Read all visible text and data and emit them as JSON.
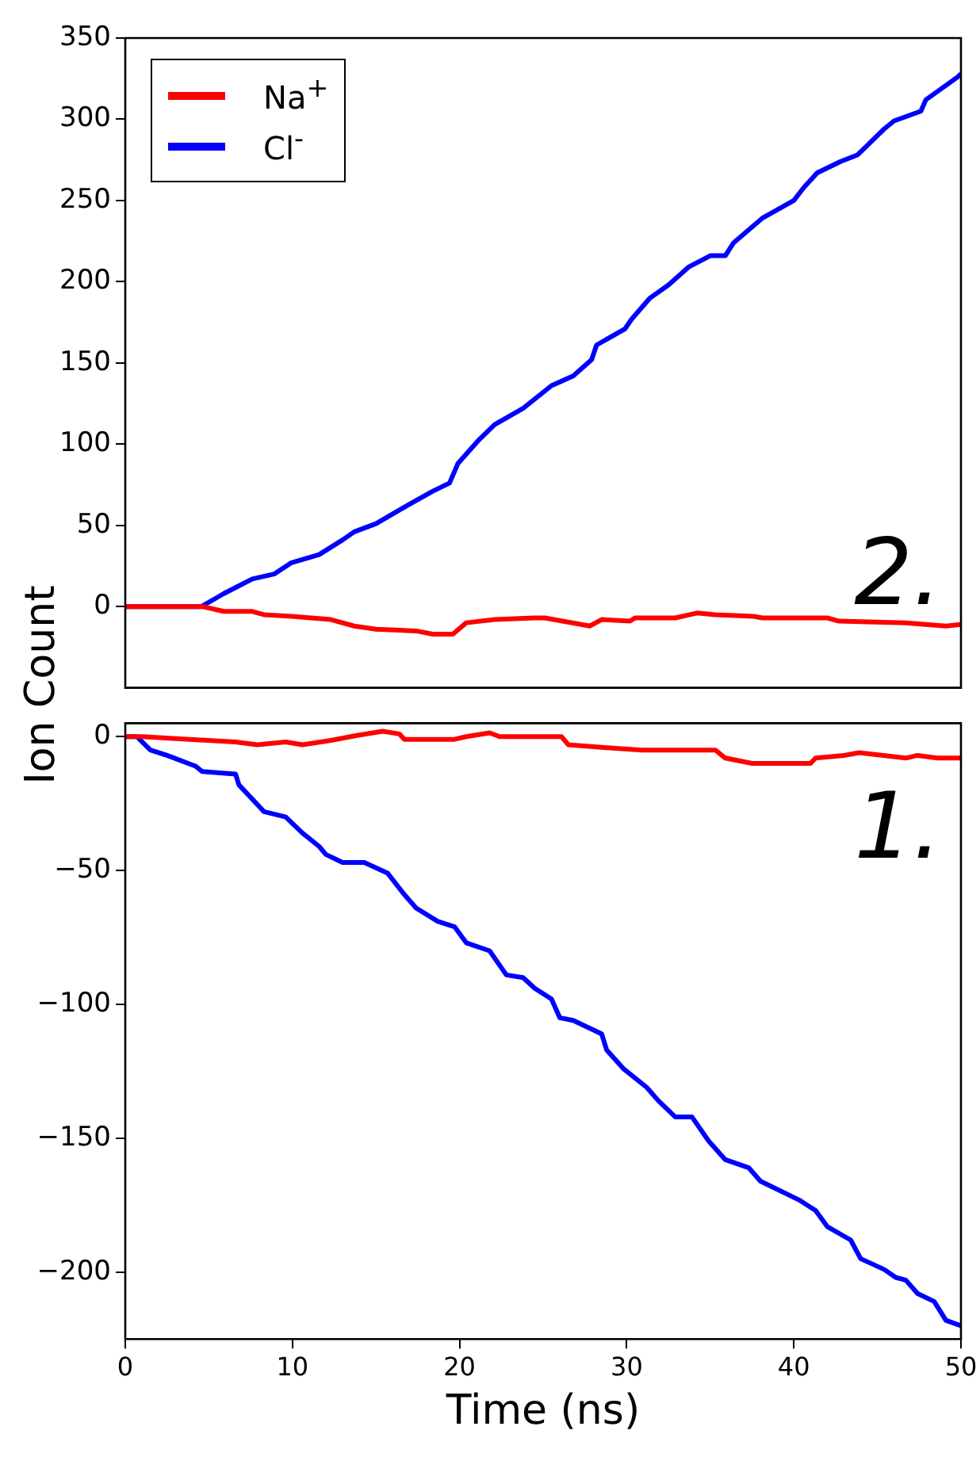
{
  "chart_data": [
    {
      "type": "line",
      "ylabel": "Ion Count",
      "legend": "top left",
      "grid": false,
      "tick_labels": "y",
      "annotations": [
        "2."
      ],
      "xlim": [
        0,
        50
      ],
      "xticks": [
        0,
        10,
        20,
        30,
        40,
        50
      ],
      "ylim": [
        -50,
        350
      ],
      "yticks": [
        0,
        50,
        100,
        150,
        200,
        250,
        300,
        350
      ],
      "series": [
        {
          "name": "Na$^{+}$",
          "color": "#ff0000",
          "x": [
            0,
            4.6,
            5.9,
            7.6,
            8.3,
            9.95,
            12.3,
            13.7,
            15,
            17.4,
            18.4,
            19.6,
            20.4,
            22.1,
            24.5,
            25.1,
            27.8,
            28.5,
            30.2,
            30.5,
            32.9,
            34.2,
            35.3,
            37.6,
            38.1,
            42,
            42.7,
            46.7,
            49.1,
            50
          ],
          "values": [
            0,
            0,
            -3,
            -3,
            -5,
            -6,
            -8,
            -12,
            -14,
            -15,
            -17,
            -17,
            -10,
            -8,
            -7,
            -7,
            -12,
            -8,
            -9,
            -7,
            -7,
            -4,
            -5,
            -6,
            -7,
            -7,
            -9,
            -10,
            -12,
            -11
          ]
        },
        {
          "name": "Cl$^{-}$",
          "color": "#0000ff",
          "x": [
            0,
            4.55,
            5.9,
            7.6,
            8.9,
            9.95,
            11.6,
            13,
            13.7,
            15,
            17,
            18.4,
            19.4,
            19.9,
            21.1,
            22.1,
            23.8,
            25.5,
            26.8,
            27.9,
            28.2,
            29.9,
            30.3,
            31.4,
            32.5,
            33.7,
            35,
            35.9,
            36.4,
            38.1,
            40,
            40.6,
            41.4,
            42.8,
            43.8,
            44.3,
            45.4,
            46,
            47.6,
            47.9,
            49.8,
            50
          ],
          "values": [
            0,
            0,
            8,
            17,
            20,
            27,
            32,
            41,
            46,
            51,
            63,
            71,
            76,
            88,
            102,
            112,
            122,
            136,
            142,
            152,
            161,
            171,
            177,
            190,
            198,
            209,
            216,
            216,
            224,
            239,
            250,
            258,
            267,
            274,
            278,
            283,
            294,
            299,
            305,
            312,
            326,
            328
          ]
        }
      ]
    },
    {
      "type": "line",
      "xlabel": "Time (ns)",
      "grid": false,
      "annotations": [
        "1."
      ],
      "xlim": [
        0,
        50
      ],
      "xticks": [
        0,
        10,
        20,
        30,
        40,
        50
      ],
      "ylim": [
        -225,
        5
      ],
      "yticks": [
        0,
        {
          "value": -50,
          "label": "−50"
        },
        {
          "value": -100,
          "label": "−100"
        },
        {
          "value": -150,
          "label": "−150"
        },
        {
          "value": -200,
          "label": "−200"
        }
      ],
      "series": [
        {
          "color": "#ff0000",
          "x": [
            0,
            1,
            6.6,
            7.9,
            9.6,
            10.6,
            12.3,
            14,
            15.4,
            16.4,
            16.7,
            19.7,
            20.4,
            21.8,
            22.4,
            26.1,
            26.5,
            28.5,
            30.9,
            35.3,
            35.9,
            37.5,
            41,
            41.3,
            43,
            43.9,
            46.7,
            47.4,
            48.6,
            50
          ],
          "values": [
            0,
            0,
            -2,
            -3,
            -2,
            -3,
            -1.4,
            0.6,
            2,
            1,
            -1,
            -1,
            0,
            1.4,
            0,
            0,
            -3,
            -4,
            -5,
            -5,
            -8,
            -10,
            -10,
            -8,
            -7,
            -6,
            -8,
            -7,
            -8,
            -8
          ]
        },
        {
          "color": "#0000ff",
          "x": [
            0,
            0.7,
            1.5,
            2.5,
            4.2,
            4.6,
            6.6,
            6.8,
            8.3,
            9.6,
            10.6,
            11.6,
            12,
            13,
            14.3,
            15.7,
            16.7,
            17.4,
            18.7,
            19.7,
            20.4,
            21.8,
            22.8,
            23.8,
            24.5,
            25.5,
            26,
            26.8,
            28.5,
            28.8,
            29.8,
            31.2,
            31.9,
            32.9,
            33.9,
            34.9,
            35.9,
            37.3,
            38,
            40.3,
            41.3,
            42,
            43.4,
            44,
            45.4,
            46.1,
            46.7,
            47.4,
            48.4,
            49.1,
            50
          ],
          "values": [
            0,
            0,
            -5,
            -7,
            -11,
            -13,
            -14,
            -18,
            -28,
            -30,
            -36,
            -41,
            -44,
            -47,
            -47,
            -51,
            -59,
            -64,
            -69,
            -71,
            -77,
            -80,
            -89,
            -90,
            -94,
            -98,
            -105,
            -106,
            -111,
            -117,
            -124,
            -131,
            -136,
            -142,
            -142,
            -151,
            -158,
            -161,
            -166,
            -173,
            -177,
            -183,
            -188,
            -195,
            -199,
            -202,
            -203,
            -208,
            -211,
            -218,
            -220
          ]
        }
      ]
    }
  ]
}
